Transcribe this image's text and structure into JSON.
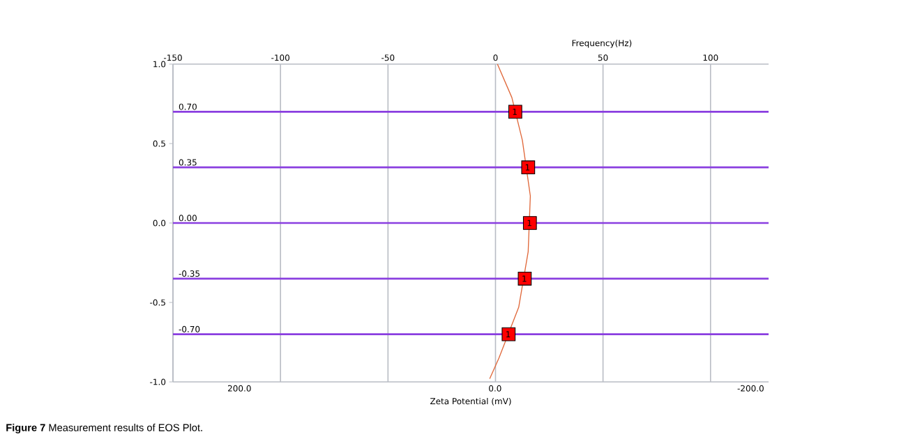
{
  "chart_data": {
    "type": "line",
    "xlabel": "Zeta Potential (mV)",
    "x2label": "Frequency(Hz)",
    "xlim": [
      252,
      -214
    ],
    "xticks": [
      {
        "value": 200,
        "label": "200.0"
      },
      {
        "value": 0,
        "label": "0.0"
      },
      {
        "value": -200,
        "label": "-200.0"
      }
    ],
    "x2lim": [
      -150,
      127
    ],
    "x2ticks": [
      -150,
      -100,
      -50,
      0,
      50,
      100
    ],
    "ylim": [
      -1,
      1
    ],
    "yticks": [
      {
        "value": -1,
        "label": "-1.0"
      },
      {
        "value": -0.5,
        "label": "-0.5"
      },
      {
        "value": 0,
        "label": "0.0"
      },
      {
        "value": 0.5,
        "label": "0.5"
      },
      {
        "value": 1,
        "label": "1.0"
      }
    ],
    "grid": "x",
    "series": [
      {
        "type": "line",
        "axis": "x2",
        "color": "#e0683a",
        "marker": "none",
        "x": [
          0.9,
          7.6,
          12.5,
          16.2,
          15.2,
          10.8,
          1.6,
          -2.7
        ],
        "values": [
          1.0,
          0.79,
          0.52,
          0.17,
          -0.18,
          -0.53,
          -0.85,
          -0.98
        ]
      },
      {
        "type": "scatter",
        "axis": "x2",
        "color": "#ff0000",
        "marker": "square",
        "x": [
          9.2,
          15.2,
          16.0,
          13.6,
          6.1
        ],
        "values": [
          0.7,
          0.35,
          0.0,
          -0.35,
          -0.7
        ]
      }
    ],
    "ref_lines": [
      {
        "axis": "y",
        "value": 0.7,
        "label": "0.70",
        "color": "#8a3ee0"
      },
      {
        "axis": "y",
        "value": 0.35,
        "label": "0.35",
        "color": "#8a3ee0"
      },
      {
        "axis": "y",
        "value": 0.0,
        "label": "0.00",
        "color": "#8a3ee0"
      },
      {
        "axis": "y",
        "value": -0.35,
        "label": "-0.35",
        "color": "#8a3ee0"
      },
      {
        "axis": "y",
        "value": -0.7,
        "label": "-0.70",
        "color": "#8a3ee0"
      }
    ],
    "annotations": [
      {
        "text": "1",
        "x": -15.4,
        "y": 0.7
      },
      {
        "text": "1",
        "x": -25.4,
        "y": 0.35
      },
      {
        "text": "1",
        "x": -26.9,
        "y": 0.0
      },
      {
        "text": "1",
        "x": -22.9,
        "y": -0.35
      },
      {
        "text": "1",
        "x": -10.2,
        "y": -0.7
      },
      "**Figure 7** Measurement results of EOS Plot."
    ]
  }
}
